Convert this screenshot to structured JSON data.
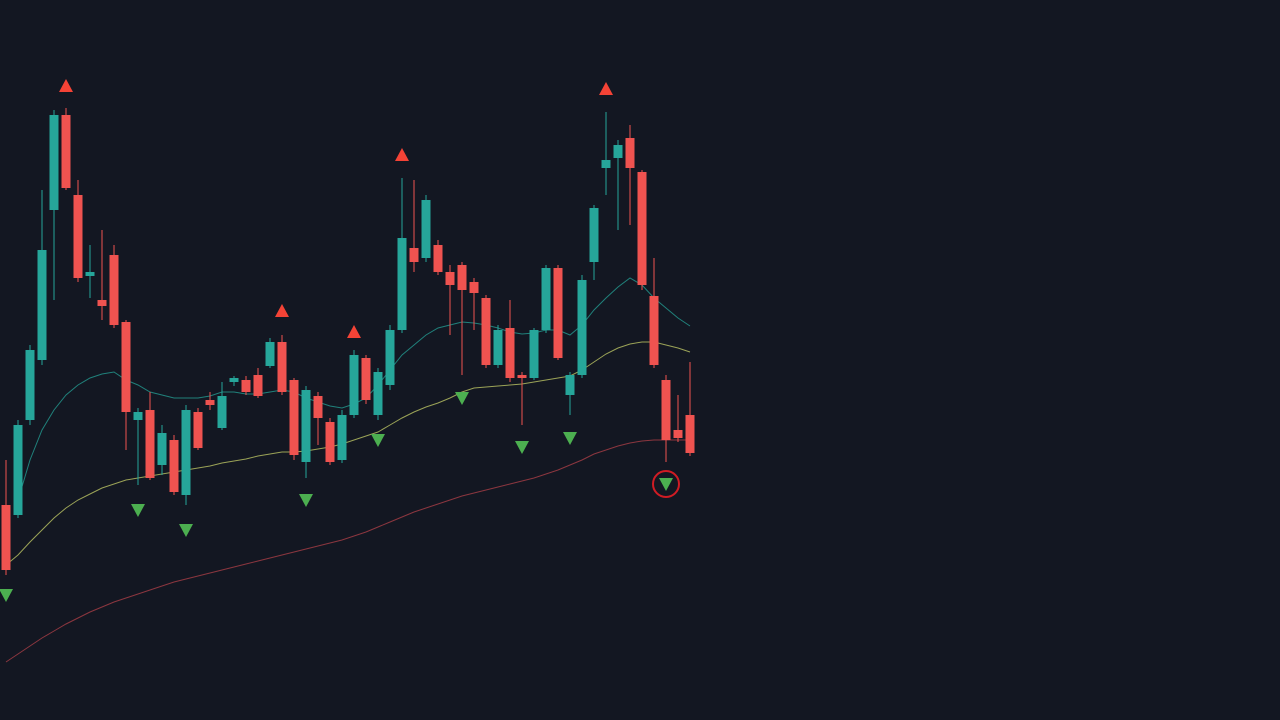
{
  "chart_data": {
    "type": "candlestick",
    "ylim": [
      0,
      720
    ],
    "up_color": "#26a69a",
    "down_color": "#ef5350",
    "open": [
      215,
      205,
      300,
      360,
      510,
      605,
      525,
      444,
      420,
      465,
      398,
      300,
      310,
      255,
      280,
      225,
      308,
      320,
      292,
      338,
      340,
      345,
      354,
      378,
      340,
      258,
      324,
      298,
      260,
      305,
      362,
      305,
      335,
      390,
      472,
      462,
      475,
      448,
      455,
      438,
      422,
      355,
      392,
      345,
      342,
      390,
      452,
      325,
      345,
      458,
      552,
      562,
      582,
      548,
      424,
      340,
      290,
      305
    ],
    "high": [
      260,
      300,
      375,
      530,
      610,
      612,
      540,
      475,
      490,
      475,
      400,
      312,
      328,
      295,
      285,
      315,
      312,
      328,
      338,
      344,
      344,
      352,
      382,
      385,
      342,
      334,
      328,
      302,
      310,
      370,
      365,
      352,
      395,
      542,
      540,
      525,
      480,
      455,
      458,
      442,
      425,
      395,
      420,
      348,
      392,
      455,
      455,
      348,
      445,
      515,
      608,
      580,
      595,
      550,
      462,
      345,
      325,
      358
    ],
    "low": [
      145,
      202,
      295,
      355,
      420,
      530,
      438,
      422,
      400,
      392,
      270,
      235,
      240,
      245,
      225,
      215,
      270,
      310,
      290,
      334,
      325,
      322,
      352,
      325,
      260,
      242,
      275,
      255,
      257,
      302,
      316,
      300,
      330,
      387,
      448,
      458,
      445,
      385,
      345,
      390,
      352,
      352,
      338,
      295,
      340,
      387,
      360,
      305,
      342,
      440,
      525,
      490,
      495,
      430,
      352,
      258,
      278,
      264
    ],
    "close": [
      150,
      295,
      370,
      470,
      605,
      532,
      442,
      448,
      414,
      395,
      308,
      308,
      242,
      287,
      228,
      310,
      272,
      315,
      324,
      342,
      328,
      324,
      378,
      328,
      265,
      330,
      302,
      258,
      305,
      365,
      320,
      348,
      390,
      482,
      458,
      520,
      448,
      435,
      430,
      427,
      355,
      390,
      342,
      342,
      390,
      452,
      362,
      345,
      440,
      512,
      560,
      575,
      552,
      435,
      355,
      280,
      282,
      267
    ],
    "series": [
      {
        "color": "#26a69a",
        "values": [
          null,
          220,
          260,
          290,
          310,
          325,
          335,
          342,
          346,
          348,
          340,
          335,
          328,
          325,
          322,
          322,
          322,
          324,
          328,
          328,
          326,
          326,
          328,
          330,
          328,
          322,
          318,
          314,
          312,
          316,
          322,
          335,
          350,
          365,
          375,
          385,
          392,
          395,
          398,
          397,
          395,
          392,
          388,
          386,
          387,
          390,
          390,
          385,
          395,
          410,
          422,
          433,
          442,
          435,
          422,
          412,
          402,
          394
        ]
      },
      {
        "color": "#c9d36a",
        "values": [
          155,
          165,
          178,
          190,
          202,
          212,
          220,
          226,
          232,
          236,
          240,
          242,
          244,
          246,
          248,
          250,
          252,
          254,
          257,
          259,
          261,
          264,
          266,
          268,
          268,
          269,
          271,
          273,
          276,
          280,
          284,
          288,
          295,
          302,
          308,
          313,
          317,
          322,
          328,
          332,
          333,
          334,
          335,
          336,
          338,
          340,
          342,
          344,
          350,
          358,
          366,
          372,
          376,
          378,
          378,
          375,
          372,
          368
        ]
      },
      {
        "color": "#b5424a",
        "values": [
          58,
          66,
          74,
          82,
          89,
          96,
          102,
          108,
          113,
          118,
          122,
          126,
          130,
          134,
          138,
          141,
          144,
          147,
          150,
          153,
          156,
          159,
          162,
          165,
          168,
          171,
          174,
          177,
          180,
          184,
          188,
          193,
          198,
          203,
          208,
          212,
          216,
          220,
          224,
          227,
          230,
          233,
          236,
          239,
          242,
          246,
          250,
          255,
          260,
          266,
          270,
          274,
          277,
          279,
          280,
          280,
          280,
          280
        ]
      }
    ],
    "signals": [
      {
        "shape": "triangle-up",
        "color": "#f44336",
        "values": [
          null,
          null,
          null,
          null,
          null,
          634,
          null,
          null,
          null,
          null,
          null,
          null,
          null,
          null,
          null,
          null,
          null,
          null,
          null,
          null,
          null,
          null,
          null,
          409,
          null,
          null,
          null,
          null,
          null,
          388,
          null,
          null,
          null,
          565,
          null,
          null,
          null,
          null,
          null,
          null,
          null,
          null,
          null,
          null,
          null,
          null,
          null,
          null,
          null,
          null,
          631,
          null,
          null,
          null,
          null,
          null,
          null,
          null
        ]
      },
      {
        "shape": "triangle-down",
        "color": "#4caf50",
        "values": [
          125,
          null,
          null,
          null,
          null,
          null,
          null,
          null,
          null,
          null,
          null,
          210,
          null,
          null,
          null,
          190,
          null,
          null,
          null,
          null,
          null,
          null,
          null,
          null,
          null,
          220,
          null,
          null,
          null,
          null,
          null,
          280,
          null,
          null,
          null,
          null,
          null,
          null,
          322,
          null,
          null,
          null,
          null,
          273,
          null,
          null,
          null,
          282,
          null,
          null,
          null,
          null,
          null,
          null,
          null,
          236,
          null,
          null
        ]
      }
    ],
    "highlight": 55,
    "highlight_color": "#d01c24"
  }
}
